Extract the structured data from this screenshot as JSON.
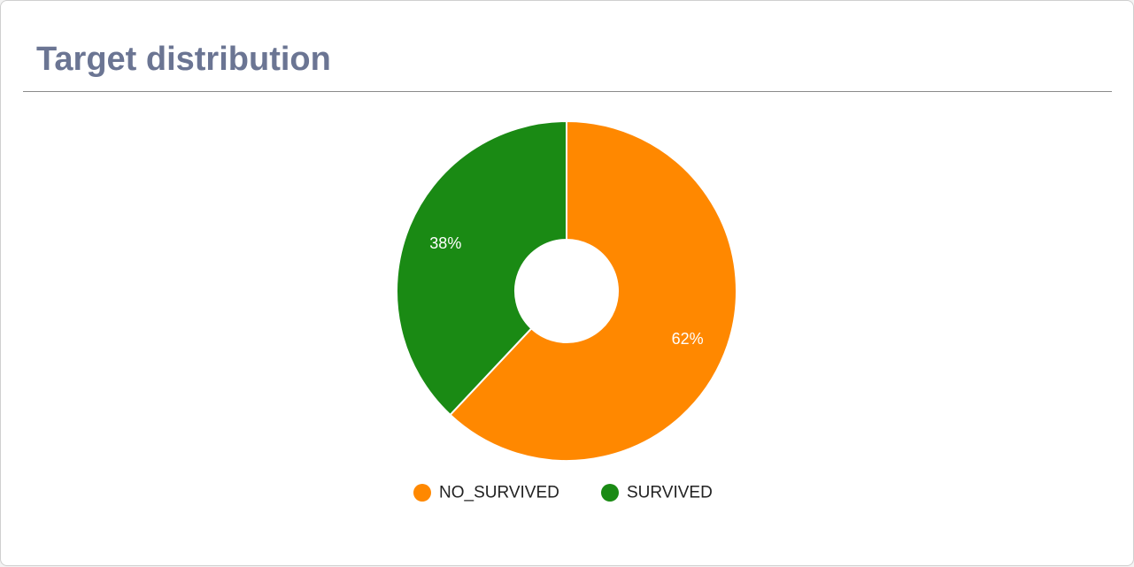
{
  "card": {
    "title": "Target distribution"
  },
  "chart_data": {
    "type": "pie",
    "donut": true,
    "categories": [
      "NO_SURVIVED",
      "SURVIVED"
    ],
    "values": [
      62,
      38
    ],
    "labels": [
      "62%",
      "38%"
    ],
    "colors": [
      "#ff8800",
      "#1a8a14"
    ],
    "legend_position": "bottom"
  }
}
